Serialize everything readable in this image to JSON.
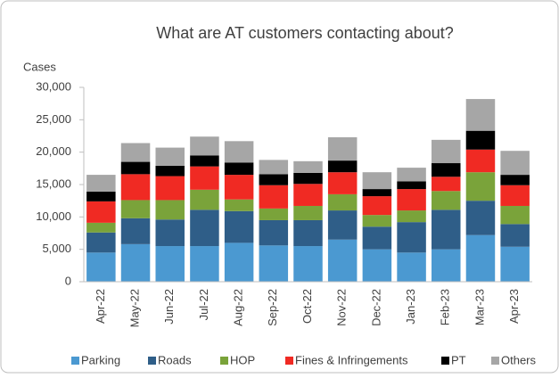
{
  "chart_data": {
    "type": "stacked_bar",
    "title": "What are AT customers contacting about?",
    "y_label": "Cases",
    "categories": [
      "Apr-22",
      "May-22",
      "Jun-22",
      "Jul-22",
      "Aug-22",
      "Sep-22",
      "Oct-22",
      "Nov-22",
      "Dec-22",
      "Jan-23",
      "Feb-23",
      "Mar-23",
      "Apr-23"
    ],
    "series": [
      {
        "name": "Parking",
        "color": "#4b99d1",
        "values": [
          4500,
          5800,
          5500,
          5500,
          6000,
          5600,
          5500,
          6500,
          5000,
          4500,
          5000,
          7200,
          5400
        ]
      },
      {
        "name": "Roads",
        "color": "#2f5e88",
        "values": [
          3100,
          4000,
          4100,
          5600,
          4900,
          3900,
          4000,
          4500,
          3500,
          4700,
          6100,
          5300,
          3500
        ]
      },
      {
        "name": "HOP",
        "color": "#7aa33a",
        "values": [
          1500,
          2800,
          3000,
          3100,
          1800,
          1800,
          2200,
          2500,
          1800,
          1800,
          2900,
          4400,
          2800
        ]
      },
      {
        "name": "Fines & Infringements",
        "color": "#f02a23",
        "values": [
          3300,
          4000,
          3700,
          3600,
          3800,
          3600,
          3400,
          3400,
          2900,
          3300,
          2200,
          3500,
          3200
        ]
      },
      {
        "name": "PT",
        "color": "#000000",
        "values": [
          1500,
          1900,
          1600,
          1700,
          1900,
          1700,
          1700,
          1800,
          1100,
          1200,
          2100,
          2900,
          1600
        ]
      },
      {
        "name": "Others",
        "color": "#a6a6a6",
        "values": [
          2600,
          2900,
          2800,
          2900,
          3300,
          2200,
          1800,
          3600,
          2600,
          2100,
          3600,
          4900,
          3700
        ]
      }
    ],
    "ylim": [
      0,
      30000
    ],
    "yticks": [
      0,
      {
        "value": 5000,
        "label": "5,000"
      },
      {
        "value": 10000,
        "label": "10,000"
      },
      {
        "value": 15000,
        "label": "15,000"
      },
      {
        "value": 20000,
        "label": "20,000"
      },
      {
        "value": 25000,
        "label": "25,000"
      },
      {
        "value": 30000,
        "label": "30,000"
      }
    ],
    "legend": "bottom"
  }
}
